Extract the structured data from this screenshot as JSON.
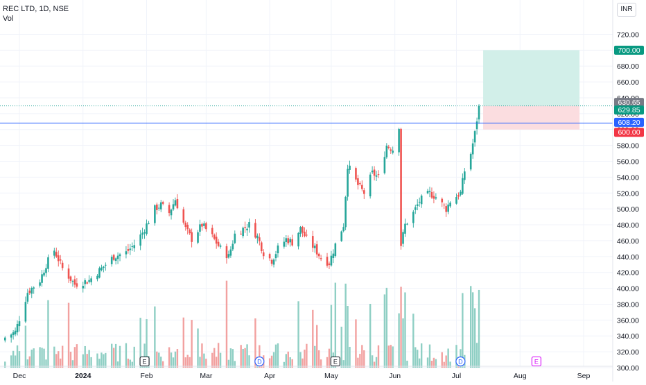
{
  "header": {
    "symbol_line": "REC LTD, 1D, NSE",
    "volume_label": "Vol",
    "currency": "INR"
  },
  "colors": {
    "up": "#26a69a",
    "down": "#ef5350",
    "up_vol": "#8fcfc4",
    "down_vol": "#f2a1a0",
    "blue_line": "#2962ff",
    "dotted_line": "#26a69a",
    "target_zone": "#d2efe9",
    "stop_zone": "#fbdde0",
    "tag_gray": "#787b86",
    "tag_green": "#089981",
    "tag_blue": "#2962ff",
    "tag_red": "#f23645"
  },
  "chart_data": {
    "type": "candlestick",
    "y_axis": {
      "min": 300,
      "max": 730,
      "ticks": [
        "720.00",
        "700.00",
        "680.00",
        "660.00",
        "640.00",
        "620.00",
        "600.00",
        "580.00",
        "560.00",
        "540.00",
        "520.00",
        "500.00",
        "480.00",
        "460.00",
        "440.00",
        "420.00",
        "400.00",
        "380.00",
        "360.00",
        "340.00",
        "320.00",
        "300.00"
      ]
    },
    "x_axis": {
      "labels": [
        "Dec",
        "2024",
        "Feb",
        "Mar",
        "Apr",
        "May",
        "Jun",
        "Jul",
        "Aug",
        "Sep"
      ],
      "label_dates": [
        "2023-12-01",
        "2024-01-01",
        "2024-02-01",
        "2024-03-01",
        "2024-04-01",
        "2024-05-01",
        "2024-06-01",
        "2024-07-01",
        "2024-08-01",
        "2024-09-01"
      ]
    },
    "grid": true,
    "price_tags": [
      {
        "value": "700.00",
        "kind": "green"
      },
      {
        "value": "630.65",
        "kind": "gray"
      },
      {
        "value": "629.85",
        "kind": "green"
      },
      {
        "value": "608.20",
        "kind": "blue"
      },
      {
        "value": "600.00",
        "kind": "red"
      }
    ],
    "horizontal_line": 608.2,
    "last_price_line": 629.85,
    "position_tool": {
      "entry": 629.85,
      "target": 700,
      "stop": 600,
      "start": "2024-07-12",
      "end": "2024-08-30"
    },
    "event_markers": [
      {
        "label": "E",
        "date": "2024-01-31",
        "kind": "earnings"
      },
      {
        "label": "D",
        "date": "2024-03-27",
        "kind": "dividend"
      },
      {
        "label": "E",
        "date": "2024-05-03",
        "kind": "earnings"
      },
      {
        "label": "D",
        "date": "2024-07-03",
        "kind": "dividend"
      },
      {
        "label": "E",
        "date": "2024-08-09",
        "kind": "upcoming-earnings"
      }
    ],
    "close_anchors": [
      [
        "2023-11-24",
        338
      ],
      [
        "2023-11-29",
        345
      ],
      [
        "2023-12-05",
        395
      ],
      [
        "2023-12-11",
        410
      ],
      [
        "2023-12-14",
        430
      ],
      [
        "2023-12-18",
        448
      ],
      [
        "2023-12-22",
        425
      ],
      [
        "2023-12-28",
        405
      ],
      [
        "2024-01-04",
        410
      ],
      [
        "2024-01-10",
        425
      ],
      [
        "2024-01-16",
        440
      ],
      [
        "2024-01-22",
        445
      ],
      [
        "2024-01-26",
        455
      ],
      [
        "2024-01-30",
        470
      ],
      [
        "2024-02-05",
        500
      ],
      [
        "2024-02-08",
        505
      ],
      [
        "2024-02-12",
        495
      ],
      [
        "2024-02-15",
        512
      ],
      [
        "2024-02-20",
        475
      ],
      [
        "2024-02-23",
        462
      ],
      [
        "2024-02-28",
        480
      ],
      [
        "2024-03-04",
        465
      ],
      [
        "2024-03-08",
        450
      ],
      [
        "2024-03-12",
        440
      ],
      [
        "2024-03-15",
        468
      ],
      [
        "2024-03-19",
        475
      ],
      [
        "2024-03-22",
        480
      ],
      [
        "2024-03-26",
        465
      ],
      [
        "2024-03-29",
        445
      ],
      [
        "2024-04-02",
        435
      ],
      [
        "2024-04-05",
        450
      ],
      [
        "2024-04-09",
        462
      ],
      [
        "2024-04-12",
        458
      ],
      [
        "2024-04-16",
        475
      ],
      [
        "2024-04-19",
        462
      ],
      [
        "2024-04-23",
        450
      ],
      [
        "2024-04-26",
        438
      ],
      [
        "2024-04-30",
        432
      ],
      [
        "2024-05-03",
        455
      ],
      [
        "2024-05-07",
        480
      ],
      [
        "2024-05-09",
        555
      ],
      [
        "2024-05-14",
        530
      ],
      [
        "2024-05-17",
        520
      ],
      [
        "2024-05-21",
        545
      ],
      [
        "2024-05-24",
        540
      ],
      [
        "2024-05-28",
        580
      ],
      [
        "2024-05-31",
        575
      ],
      [
        "2024-06-03",
        605
      ],
      [
        "2024-06-04",
        455
      ],
      [
        "2024-06-06",
        480
      ],
      [
        "2024-06-10",
        495
      ],
      [
        "2024-06-13",
        510
      ],
      [
        "2024-06-18",
        520
      ],
      [
        "2024-06-21",
        515
      ],
      [
        "2024-06-26",
        500
      ],
      [
        "2024-06-28",
        510
      ],
      [
        "2024-07-03",
        520
      ],
      [
        "2024-07-05",
        548
      ],
      [
        "2024-07-08",
        570
      ],
      [
        "2024-07-10",
        595
      ],
      [
        "2024-07-12",
        629.85
      ]
    ],
    "volume_note": "volume bars below price, no numeric volume scale shown"
  }
}
